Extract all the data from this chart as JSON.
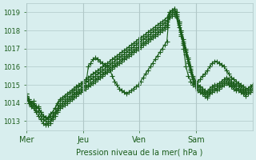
{
  "title": "",
  "xlabel": "Pression niveau de la mer( hPa )",
  "ylabel": "",
  "bg_color": "#d8eeee",
  "grid_color": "#b0c8c8",
  "line_color": "#1a5c1a",
  "marker": "+",
  "marker_size": 4,
  "ylim": [
    1012.5,
    1019.5
  ],
  "xlim": [
    0,
    96
  ],
  "yticks": [
    1013,
    1014,
    1015,
    1016,
    1017,
    1018,
    1019
  ],
  "xtick_labels": [
    "Mer",
    "Jeu",
    "Ven",
    "Sam"
  ],
  "xtick_positions": [
    0,
    24,
    48,
    72
  ],
  "day_lines": [
    0,
    24,
    48,
    72,
    96
  ],
  "series": [
    [
      1014.5,
      1014.2,
      1014.0,
      1014.1,
      1013.8,
      1013.8,
      1013.5,
      1013.3,
      1013.2,
      1013.2,
      1013.4,
      1013.5,
      1013.7,
      1014.0,
      1014.2,
      1014.3,
      1014.4,
      1014.5,
      1014.6,
      1014.7,
      1014.8,
      1014.9,
      1015.0,
      1015.1,
      1015.2,
      1015.3,
      1015.4,
      1015.5,
      1015.6,
      1015.7,
      1015.8,
      1015.9,
      1016.0,
      1016.1,
      1016.2,
      1016.3,
      1016.4,
      1016.5,
      1016.6,
      1016.7,
      1016.8,
      1016.9,
      1017.0,
      1017.1,
      1017.2,
      1017.3,
      1017.4,
      1017.5,
      1017.6,
      1017.7,
      1017.8,
      1017.9,
      1018.0,
      1018.1,
      1018.2,
      1018.3,
      1018.4,
      1018.5,
      1018.6,
      1018.7,
      1019.0,
      1019.1,
      1019.2,
      1019.0,
      1018.5,
      1018.0,
      1017.5,
      1017.0,
      1016.5,
      1016.0,
      1015.5,
      1015.2,
      1015.0,
      1014.9,
      1014.8,
      1014.7,
      1014.6,
      1014.8,
      1014.9,
      1015.0,
      1015.0,
      1015.1,
      1015.2,
      1015.3,
      1015.4,
      1015.3,
      1015.2,
      1015.1,
      1015.0,
      1015.0,
      1014.9,
      1014.8,
      1014.7,
      1014.8,
      1014.9,
      1015.0
    ],
    [
      1014.5,
      1014.2,
      1014.0,
      1014.0,
      1013.8,
      1013.7,
      1013.5,
      1013.3,
      1013.2,
      1013.1,
      1013.3,
      1013.5,
      1013.7,
      1013.9,
      1014.1,
      1014.2,
      1014.3,
      1014.4,
      1014.5,
      1014.6,
      1014.7,
      1014.8,
      1014.9,
      1015.0,
      1015.1,
      1015.2,
      1015.2,
      1015.3,
      1015.4,
      1015.5,
      1015.6,
      1015.7,
      1015.8,
      1015.9,
      1016.0,
      1016.1,
      1016.2,
      1016.3,
      1016.4,
      1016.5,
      1016.6,
      1016.7,
      1016.8,
      1016.9,
      1017.0,
      1017.1,
      1017.2,
      1017.3,
      1017.4,
      1017.5,
      1017.6,
      1017.7,
      1017.8,
      1017.9,
      1018.0,
      1018.1,
      1018.2,
      1018.3,
      1018.4,
      1018.5,
      1018.9,
      1019.0,
      1019.1,
      1018.9,
      1018.4,
      1017.9,
      1017.4,
      1016.9,
      1016.4,
      1015.9,
      1015.4,
      1015.1,
      1014.9,
      1014.8,
      1014.7,
      1014.6,
      1014.5,
      1014.7,
      1014.8,
      1014.9,
      1014.9,
      1015.0,
      1015.1,
      1015.2,
      1015.3,
      1015.2,
      1015.1,
      1015.0,
      1014.9,
      1014.9,
      1014.8,
      1014.7,
      1014.6,
      1014.7,
      1014.8,
      1014.9
    ],
    [
      1014.4,
      1014.1,
      1013.9,
      1013.8,
      1013.6,
      1013.5,
      1013.3,
      1013.1,
      1013.0,
      1012.9,
      1013.0,
      1013.2,
      1013.4,
      1013.6,
      1013.8,
      1013.9,
      1014.0,
      1014.1,
      1014.2,
      1014.3,
      1014.4,
      1014.5,
      1014.6,
      1014.7,
      1014.8,
      1014.9,
      1015.0,
      1015.1,
      1015.2,
      1015.3,
      1015.4,
      1015.5,
      1015.6,
      1015.7,
      1015.8,
      1015.9,
      1016.0,
      1016.1,
      1016.2,
      1016.3,
      1016.4,
      1016.5,
      1016.6,
      1016.7,
      1016.8,
      1016.9,
      1017.0,
      1017.1,
      1017.2,
      1017.3,
      1017.4,
      1017.5,
      1017.6,
      1017.7,
      1017.8,
      1017.9,
      1018.0,
      1018.1,
      1018.2,
      1018.3,
      1018.8,
      1018.9,
      1019.0,
      1018.8,
      1018.3,
      1017.8,
      1017.3,
      1016.8,
      1016.3,
      1015.8,
      1015.3,
      1015.0,
      1014.8,
      1014.7,
      1014.6,
      1014.5,
      1014.4,
      1014.6,
      1014.7,
      1014.8,
      1014.8,
      1014.9,
      1015.0,
      1015.1,
      1015.2,
      1015.1,
      1015.0,
      1014.9,
      1014.8,
      1014.8,
      1014.7,
      1014.6,
      1014.5,
      1014.6,
      1014.7,
      1014.8
    ],
    [
      1014.3,
      1014.0,
      1013.8,
      1013.7,
      1013.5,
      1013.3,
      1013.1,
      1012.9,
      1012.8,
      1012.8,
      1012.9,
      1013.1,
      1013.3,
      1013.5,
      1013.7,
      1013.8,
      1013.9,
      1014.0,
      1014.1,
      1014.2,
      1014.3,
      1014.4,
      1014.5,
      1014.6,
      1014.7,
      1014.8,
      1014.9,
      1015.0,
      1015.1,
      1015.2,
      1015.3,
      1015.4,
      1015.5,
      1015.6,
      1015.7,
      1015.8,
      1015.9,
      1016.0,
      1016.1,
      1016.2,
      1016.3,
      1016.4,
      1016.5,
      1016.6,
      1016.7,
      1016.8,
      1016.9,
      1017.0,
      1017.1,
      1017.2,
      1017.3,
      1017.4,
      1017.5,
      1017.6,
      1017.7,
      1017.8,
      1017.9,
      1018.0,
      1018.1,
      1018.2,
      1018.7,
      1018.8,
      1018.9,
      1018.7,
      1018.2,
      1017.7,
      1017.2,
      1016.7,
      1016.2,
      1015.7,
      1015.2,
      1014.9,
      1014.7,
      1014.6,
      1014.5,
      1014.4,
      1014.3,
      1014.5,
      1014.6,
      1014.7,
      1014.7,
      1014.8,
      1014.9,
      1015.0,
      1015.1,
      1015.0,
      1014.9,
      1014.8,
      1014.7,
      1014.7,
      1014.6,
      1014.5,
      1014.4,
      1014.5,
      1014.6,
      1014.7
    ],
    [
      1014.4,
      1014.1,
      1014.0,
      1013.9,
      1013.7,
      1013.7,
      1013.5,
      1013.3,
      1013.2,
      1013.1,
      1013.2,
      1013.3,
      1013.5,
      1013.7,
      1013.9,
      1014.0,
      1014.1,
      1014.2,
      1014.3,
      1014.4,
      1014.5,
      1014.6,
      1014.7,
      1014.8,
      1014.9,
      1015.0,
      1016.0,
      1016.2,
      1016.4,
      1016.5,
      1016.4,
      1016.3,
      1016.2,
      1016.1,
      1016.0,
      1015.9,
      1015.5,
      1015.2,
      1015.0,
      1014.8,
      1014.7,
      1014.6,
      1014.5,
      1014.6,
      1014.7,
      1014.8,
      1014.9,
      1015.0,
      1015.2,
      1015.4,
      1015.6,
      1015.8,
      1016.0,
      1016.2,
      1016.4,
      1016.6,
      1016.8,
      1017.0,
      1017.2,
      1017.4,
      1019.0,
      1019.1,
      1019.2,
      1019.0,
      1018.5,
      1018.0,
      1017.0,
      1016.0,
      1015.5,
      1015.2,
      1015.0,
      1015.1,
      1015.2,
      1015.3,
      1015.5,
      1015.6,
      1015.8,
      1016.0,
      1016.2,
      1016.3,
      1016.3,
      1016.2,
      1016.1,
      1016.0,
      1015.8,
      1015.6,
      1015.4,
      1015.3,
      1015.2,
      1015.1,
      1015.0,
      1014.9,
      1014.8,
      1014.8,
      1014.9,
      1015.0
    ]
  ]
}
